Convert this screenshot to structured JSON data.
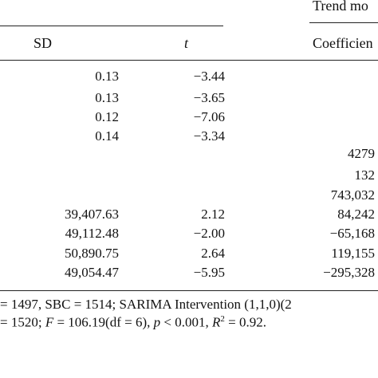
{
  "table": {
    "group_header": "Trend mo",
    "columns": {
      "sd": "SD",
      "t": "t",
      "coefficient": "Coefficien"
    },
    "rows": [
      {
        "sd": "0.13",
        "t": "−3.44",
        "coef": ""
      },
      {
        "sd": "0.13",
        "t": "−3.65",
        "coef": ""
      },
      {
        "sd": "0.12",
        "t": "−7.06",
        "coef": ""
      },
      {
        "sd": "0.14",
        "t": "−3.34",
        "coef": ""
      },
      {
        "sd": "",
        "t": "",
        "coef": "4279"
      },
      {
        "sd": "",
        "t": "",
        "coef": "132"
      },
      {
        "sd": "",
        "t": "",
        "coef": "743,032"
      },
      {
        "sd": "39,407.63",
        "t": "2.12",
        "coef": "84,242"
      },
      {
        "sd": "49,112.48",
        "t": "−2.00",
        "coef": "−65,168"
      },
      {
        "sd": "50,890.75",
        "t": "2.64",
        "coef": "119,155"
      },
      {
        "sd": "49,054.47",
        "t": "−5.95",
        "coef": "−295,328"
      }
    ]
  },
  "footnote": {
    "line1": {
      "a": "= 1497,  SBC = 1514;  SARIMA  Intervention  (1,1,0)(2"
    },
    "line2": {
      "a": "= 1520; ",
      "F": "F",
      "b": " = 106.19(df = 6), ",
      "p": "p",
      "c": " < 0.001, ",
      "R": "R",
      "sup": "2",
      "d": " = 0.92."
    }
  }
}
